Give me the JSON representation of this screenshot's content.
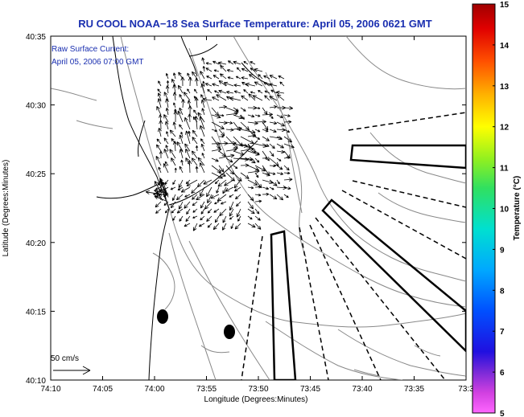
{
  "title": "RU COOL  NOAA−18  Sea Surface Temperature:  April 05, 2006 0621 GMT",
  "inset": {
    "line1": "Raw Surface Current:",
    "line2": "April 05, 2006 07:00 GMT",
    "scale_label": "50 cm/s"
  },
  "axes": {
    "xlabel": "Longitude (Degrees:Minutes)",
    "ylabel": "Latitude (Degrees:Minutes)",
    "xticks": [
      "74:10",
      "74:05",
      "74:00",
      "73:55",
      "73:50",
      "73:45",
      "73:40",
      "73:35",
      "73:3"
    ],
    "yticks": [
      "40:35",
      "40:30",
      "40:25",
      "40:20",
      "40:15",
      "40:10"
    ]
  },
  "colorbar": {
    "label": "Temperature (°C)",
    "ticks": [
      "15",
      "14",
      "13",
      "12",
      "11",
      "10",
      "9",
      "8",
      "7",
      "6",
      "5"
    ],
    "min": 5,
    "max": 15
  },
  "colors": {
    "title": "#1a2fb0",
    "vector": "#000000",
    "coast": "#000000",
    "bathy": "#888888"
  }
}
